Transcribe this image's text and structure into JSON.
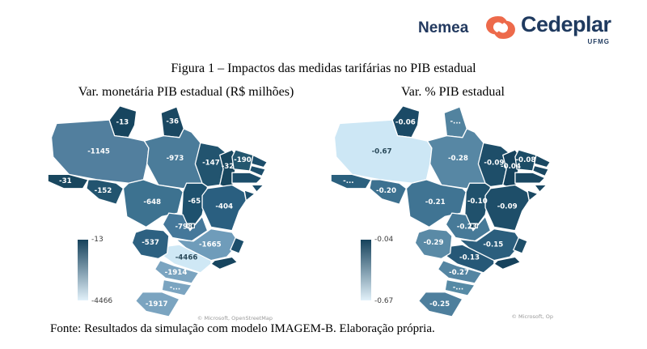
{
  "header": {
    "nemea_wordmark": "Nemea",
    "cedeplar_wordmark": "Cedeplar",
    "cedeplar_sub": "UFMG",
    "brand_navy": "#22395f",
    "brand_orange": "#ed6a4b"
  },
  "figure_title": "Figura 1 – Impactos das medidas tarifárias no PIB estadual",
  "source_note": "Fonte: Resultados da simulação com modelo IMAGEM-B. Elaboração própria.",
  "chart_data": [
    {
      "type": "choropleth",
      "region": "Brazil states",
      "title": "Var. monetária PIB estadual (R$ milhões)",
      "unit": "R$ milhões",
      "legend": {
        "max_label": "-13",
        "min_label": "-4466",
        "dark": "#16425c",
        "light": "#e2f1fa"
      },
      "attribution": "© Microsoft, OpenStreetMap",
      "states": [
        {
          "id": "RR",
          "label": "-13",
          "value": -13,
          "fill": "#17455f"
        },
        {
          "id": "AP",
          "label": "-36",
          "value": -36,
          "fill": "#1a4862"
        },
        {
          "id": "AM",
          "label": "-1145",
          "value": -1145,
          "fill": "#527f9e"
        },
        {
          "id": "PA",
          "label": "-973",
          "value": -973,
          "fill": "#4b7c9a"
        },
        {
          "id": "AC",
          "label": "-31",
          "value": -31,
          "fill": "#19475f"
        },
        {
          "id": "RO",
          "label": "-152",
          "value": -152,
          "fill": "#22546f"
        },
        {
          "id": "MT",
          "label": "-648",
          "value": -648,
          "fill": "#3d7290"
        },
        {
          "id": "TO",
          "label": "-65",
          "value": -65,
          "fill": "#1e516e"
        },
        {
          "id": "MA",
          "label": "-147",
          "value": -147,
          "fill": "#22546f"
        },
        {
          "id": "PI",
          "label": "-32",
          "value": -32,
          "fill": "#19475f"
        },
        {
          "id": "CE",
          "label": "-190",
          "value": -190,
          "fill": "#24576f"
        },
        {
          "id": "RN",
          "label": "",
          "value": null,
          "fill": "#1c4e6b"
        },
        {
          "id": "PB",
          "label": "",
          "value": null,
          "fill": "#1c4e6b"
        },
        {
          "id": "PE",
          "label": "",
          "value": null,
          "fill": "#1c4e6b"
        },
        {
          "id": "AL",
          "label": "",
          "value": null,
          "fill": "#1c4e6b"
        },
        {
          "id": "SE",
          "label": "",
          "value": null,
          "fill": "#1c4e6b"
        },
        {
          "id": "BA",
          "label": "-404",
          "value": -404,
          "fill": "#2a5f80"
        },
        {
          "id": "GO",
          "label": "-798",
          "value": -798,
          "fill": "#45789a"
        },
        {
          "id": "DF",
          "label": "",
          "value": null,
          "fill": "#17455f"
        },
        {
          "id": "MG",
          "label": "-1665",
          "value": -1665,
          "fill": "#6f9cba"
        },
        {
          "id": "ES",
          "label": "",
          "value": null,
          "fill": "#1c4e6b"
        },
        {
          "id": "RJ",
          "label": "",
          "value": null,
          "fill": "#17455f"
        },
        {
          "id": "SP",
          "label": "-4466",
          "value": -4466,
          "fill": "#cfe8f5",
          "label_color": "#2a4a5a"
        },
        {
          "id": "MS",
          "label": "-537",
          "value": -537,
          "fill": "#2d6181"
        },
        {
          "id": "PR",
          "label": "-1914",
          "value": -1914,
          "fill": "#7ba4c0"
        },
        {
          "id": "SC",
          "label": "-...",
          "value": null,
          "fill": "#7ba4c0"
        },
        {
          "id": "RS",
          "label": "-1917",
          "value": -1917,
          "fill": "#7ba4c0"
        }
      ]
    },
    {
      "type": "choropleth",
      "region": "Brazil states",
      "title": "Var. % PIB estadual",
      "unit": "%",
      "legend": {
        "max_label": "-0.04",
        "min_label": "-0.67",
        "dark": "#16425c",
        "light": "#e2f1fa"
      },
      "attribution": "© Microsoft, Op",
      "states": [
        {
          "id": "RR",
          "label": "-0.06",
          "value": -0.06,
          "fill": "#1b4a66"
        },
        {
          "id": "AP",
          "label": "-...",
          "value": null,
          "fill": "#52839f"
        },
        {
          "id": "AM",
          "label": "-0.67",
          "value": -0.67,
          "fill": "#cde7f5",
          "label_color": "#2a4a5a"
        },
        {
          "id": "PA",
          "label": "-0.28",
          "value": -0.28,
          "fill": "#5787a4"
        },
        {
          "id": "AC",
          "label": "-...",
          "value": null,
          "fill": "#2b607e"
        },
        {
          "id": "RO",
          "label": "-0.20",
          "value": -0.2,
          "fill": "#3d7190"
        },
        {
          "id": "MT",
          "label": "-0.21",
          "value": -0.21,
          "fill": "#407493"
        },
        {
          "id": "TO",
          "label": "-0.10",
          "value": -0.1,
          "fill": "#20516c"
        },
        {
          "id": "MA",
          "label": "-0.09",
          "value": -0.09,
          "fill": "#1e4e69"
        },
        {
          "id": "PI",
          "label": "-0.04",
          "value": -0.04,
          "fill": "#16425c"
        },
        {
          "id": "CE",
          "label": "-0.08",
          "value": -0.08,
          "fill": "#1c4c66"
        },
        {
          "id": "RN",
          "label": "",
          "value": null,
          "fill": "#1a4862"
        },
        {
          "id": "PB",
          "label": "",
          "value": null,
          "fill": "#1a4862"
        },
        {
          "id": "PE",
          "label": "",
          "value": null,
          "fill": "#1a4862"
        },
        {
          "id": "AL",
          "label": "",
          "value": null,
          "fill": "#1a4862"
        },
        {
          "id": "SE",
          "label": "",
          "value": null,
          "fill": "#1a4862"
        },
        {
          "id": "BA",
          "label": "-0.09",
          "value": -0.09,
          "fill": "#1e4e69"
        },
        {
          "id": "GO",
          "label": "-0.23",
          "value": -0.23,
          "fill": "#477a98"
        },
        {
          "id": "DF",
          "label": "",
          "value": null,
          "fill": "#16425c"
        },
        {
          "id": "MG",
          "label": "-0.15",
          "value": -0.15,
          "fill": "#2b5e7d"
        },
        {
          "id": "ES",
          "label": "",
          "value": null,
          "fill": "#1e4e69"
        },
        {
          "id": "RJ",
          "label": "",
          "value": null,
          "fill": "#16425c"
        },
        {
          "id": "SP",
          "label": "-0.13",
          "value": -0.13,
          "fill": "#265877"
        },
        {
          "id": "MS",
          "label": "-0.29",
          "value": -0.29,
          "fill": "#5a8aa6"
        },
        {
          "id": "PR",
          "label": "-0.27",
          "value": -0.27,
          "fill": "#5485a2"
        },
        {
          "id": "SC",
          "label": "-...",
          "value": null,
          "fill": "#568aa5"
        },
        {
          "id": "RS",
          "label": "-0.25",
          "value": -0.25,
          "fill": "#4e7f9d"
        }
      ]
    }
  ]
}
